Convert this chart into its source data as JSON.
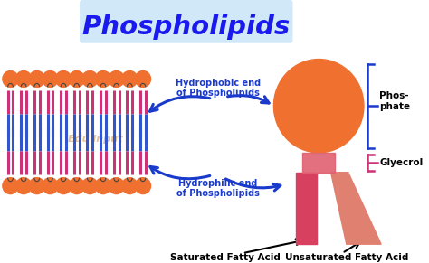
{
  "title": "Phospholipids",
  "title_color": "#1a1aee",
  "title_bg": "#d0e8f8",
  "background_color": "#ffffff",
  "head_color": "#f07030",
  "tail_color_blue": "#3355cc",
  "tail_color_pink": "#cc3377",
  "tail_color_red": "#d84060",
  "glycerol_color": "#e06070",
  "arrow_color": "#1a3acc",
  "label_color": "#1a3acc",
  "phosphate_bracket_color": "#1a3acc",
  "glycerol_bracket_color": "#cc3377",
  "labels": {
    "hydrophobic": "Hydrophobic end\nof Phospholipids",
    "hydrophilic": "Hydrophilic end\nof Phospholipids",
    "saturated": "Saturated Fatty Acid",
    "unsaturated": "Unsaturated Fatty Acid",
    "phosphate": "Phos-\nphate",
    "glycerol": "Glyecrol"
  },
  "watermark": "Edu input",
  "n_lipids": 11
}
